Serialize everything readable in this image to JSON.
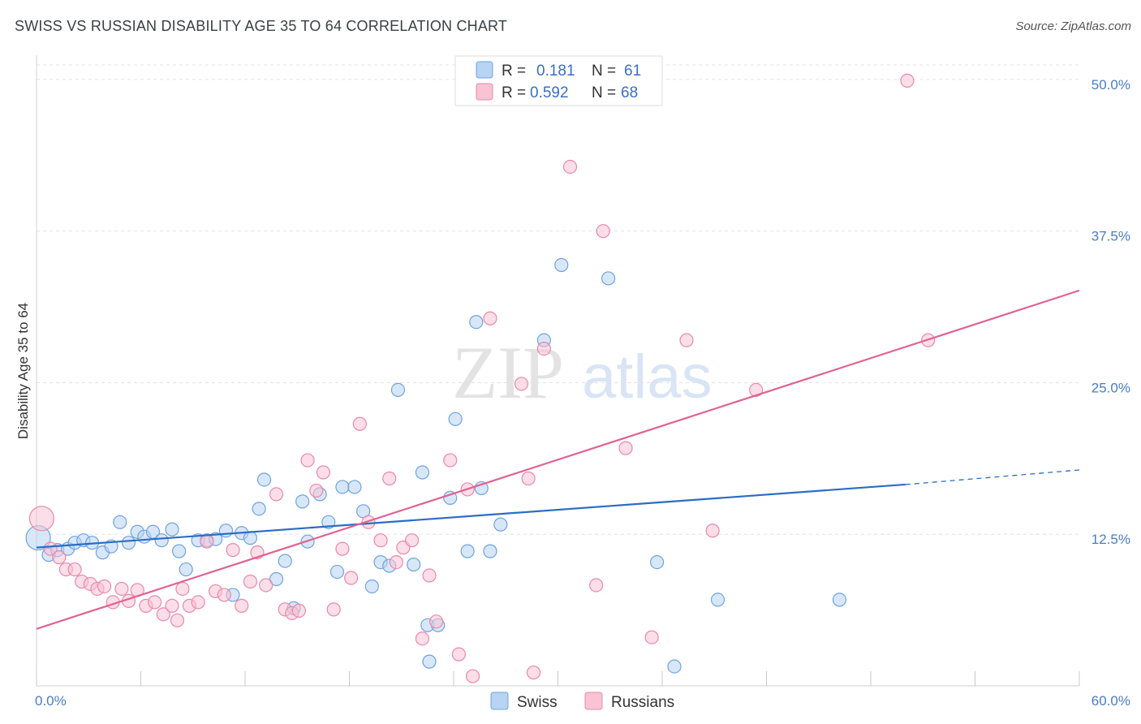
{
  "header": {
    "title": "SWISS VS RUSSIAN DISABILITY AGE 35 TO 64 CORRELATION CHART",
    "source": "Source: ZipAtlas.com"
  },
  "watermark": {
    "zip": "ZIP",
    "atlas": "atlas"
  },
  "legend": {
    "rows": [
      {
        "r_label": "R =",
        "r_value": "0.181",
        "n_label": "N =",
        "n_value": "61",
        "color": "#6fa3e0",
        "fill": "#b8d3f3"
      },
      {
        "r_label": "R =",
        "r_value": "0.592",
        "n_label": "N =",
        "n_value": "68",
        "color": "#e989aa",
        "fill": "#f8c3d3"
      }
    ]
  },
  "bottom_legend": {
    "items": [
      {
        "label": "Swiss",
        "fill": "#b8d3f3",
        "color": "#6fa3e0"
      },
      {
        "label": "Russians",
        "fill": "#f8c3d3",
        "color": "#e989aa"
      }
    ]
  },
  "chart_data": {
    "type": "scatter",
    "title": "SWISS VS RUSSIAN DISABILITY AGE 35 TO 64 CORRELATION CHART",
    "xlabel": "",
    "ylabel": "Disability Age 35 to 64",
    "xlim": [
      0,
      60
    ],
    "ylim": [
      0,
      52
    ],
    "x_tick_labels": [
      {
        "value": 0,
        "label": "0.0%"
      },
      {
        "value": 60,
        "label": "60.0%"
      }
    ],
    "y_tick_labels": [
      {
        "value": 12.5,
        "label": "12.5%"
      },
      {
        "value": 25,
        "label": "25.0%"
      },
      {
        "value": 37.5,
        "label": "37.5%"
      },
      {
        "value": 50,
        "label": "50.0%"
      }
    ],
    "x_ticks_minor": [
      0,
      6,
      12,
      18,
      24,
      30,
      36,
      42,
      48,
      54,
      60
    ],
    "grid": "horizontal dashed",
    "series": [
      {
        "name": "Swiss",
        "color": "#6fa3e0",
        "fill": "#b8d3f3",
        "trend": {
          "x0": 0,
          "y0": 11.4,
          "x1": 50,
          "y1": 16.6,
          "dash_to_x": 60,
          "dash_to_y": 17.8
        },
        "points": [
          [
            0.1,
            12.2
          ],
          [
            0.7,
            10.8
          ],
          [
            1.2,
            11.2
          ],
          [
            1.8,
            11.3
          ],
          [
            2.2,
            11.8
          ],
          [
            2.7,
            12.0
          ],
          [
            3.2,
            11.8
          ],
          [
            3.8,
            11.0
          ],
          [
            4.3,
            11.5
          ],
          [
            4.8,
            13.5
          ],
          [
            5.3,
            11.8
          ],
          [
            5.8,
            12.7
          ],
          [
            6.2,
            12.3
          ],
          [
            6.7,
            12.7
          ],
          [
            7.2,
            12.0
          ],
          [
            7.8,
            12.9
          ],
          [
            8.2,
            11.1
          ],
          [
            8.6,
            9.6
          ],
          [
            9.3,
            12.0
          ],
          [
            9.8,
            12.0
          ],
          [
            10.3,
            12.1
          ],
          [
            10.9,
            12.8
          ],
          [
            11.3,
            7.5
          ],
          [
            11.8,
            12.6
          ],
          [
            12.3,
            12.2
          ],
          [
            12.8,
            14.6
          ],
          [
            13.1,
            17.0
          ],
          [
            13.8,
            8.8
          ],
          [
            14.3,
            10.3
          ],
          [
            14.8,
            6.4
          ],
          [
            15.3,
            15.2
          ],
          [
            15.6,
            11.9
          ],
          [
            16.3,
            15.8
          ],
          [
            16.8,
            13.5
          ],
          [
            17.3,
            9.4
          ],
          [
            17.6,
            16.4
          ],
          [
            18.3,
            16.4
          ],
          [
            18.8,
            14.4
          ],
          [
            19.3,
            8.2
          ],
          [
            19.8,
            10.2
          ],
          [
            20.3,
            9.9
          ],
          [
            20.8,
            24.4
          ],
          [
            21.7,
            10.0
          ],
          [
            22.2,
            17.6
          ],
          [
            22.5,
            5.0
          ],
          [
            22.6,
            2.0
          ],
          [
            23.1,
            5.0
          ],
          [
            23.8,
            15.5
          ],
          [
            24.1,
            22.0
          ],
          [
            24.8,
            11.1
          ],
          [
            25.3,
            30.0
          ],
          [
            25.6,
            16.3
          ],
          [
            26.1,
            11.1
          ],
          [
            26.7,
            13.3
          ],
          [
            29.2,
            28.5
          ],
          [
            30.2,
            34.7
          ],
          [
            32.9,
            33.6
          ],
          [
            35.7,
            10.2
          ],
          [
            36.7,
            1.6
          ],
          [
            39.2,
            7.1
          ],
          [
            46.2,
            7.1
          ]
        ]
      },
      {
        "name": "Russians",
        "color": "#e989aa",
        "fill": "#f8c3d3",
        "trend": {
          "x0": 0,
          "y0": 4.7,
          "x1": 60,
          "y1": 32.6
        },
        "points": [
          [
            0.3,
            13.8
          ],
          [
            0.8,
            11.3
          ],
          [
            1.3,
            10.6
          ],
          [
            1.7,
            9.6
          ],
          [
            2.2,
            9.6
          ],
          [
            2.6,
            8.6
          ],
          [
            3.1,
            8.4
          ],
          [
            3.5,
            8.0
          ],
          [
            3.9,
            8.2
          ],
          [
            4.4,
            6.9
          ],
          [
            4.9,
            8.0
          ],
          [
            5.3,
            7.0
          ],
          [
            5.8,
            7.9
          ],
          [
            6.3,
            6.6
          ],
          [
            6.8,
            6.9
          ],
          [
            7.3,
            5.9
          ],
          [
            7.8,
            6.6
          ],
          [
            8.1,
            5.4
          ],
          [
            8.4,
            8.0
          ],
          [
            8.8,
            6.6
          ],
          [
            9.3,
            6.9
          ],
          [
            9.8,
            11.9
          ],
          [
            10.3,
            7.8
          ],
          [
            10.8,
            7.5
          ],
          [
            11.3,
            11.2
          ],
          [
            11.8,
            6.6
          ],
          [
            12.3,
            8.6
          ],
          [
            12.7,
            11.0
          ],
          [
            13.2,
            8.3
          ],
          [
            13.8,
            15.8
          ],
          [
            14.3,
            6.3
          ],
          [
            14.7,
            6.0
          ],
          [
            15.1,
            6.2
          ],
          [
            15.6,
            18.6
          ],
          [
            16.1,
            16.1
          ],
          [
            16.5,
            17.6
          ],
          [
            17.1,
            6.3
          ],
          [
            17.6,
            11.3
          ],
          [
            18.1,
            8.9
          ],
          [
            18.6,
            21.6
          ],
          [
            19.1,
            13.5
          ],
          [
            19.8,
            12.0
          ],
          [
            20.3,
            17.1
          ],
          [
            20.7,
            10.2
          ],
          [
            21.1,
            11.4
          ],
          [
            21.6,
            12.0
          ],
          [
            22.2,
            3.9
          ],
          [
            22.6,
            9.1
          ],
          [
            23.0,
            5.3
          ],
          [
            23.8,
            18.6
          ],
          [
            24.3,
            2.6
          ],
          [
            24.8,
            16.2
          ],
          [
            25.1,
            0.8
          ],
          [
            26.1,
            30.3
          ],
          [
            27.9,
            24.9
          ],
          [
            28.3,
            17.1
          ],
          [
            28.6,
            1.1
          ],
          [
            29.2,
            27.8
          ],
          [
            30.7,
            42.8
          ],
          [
            32.2,
            8.3
          ],
          [
            32.6,
            37.5
          ],
          [
            33.9,
            19.6
          ],
          [
            35.4,
            4.0
          ],
          [
            37.4,
            28.5
          ],
          [
            38.9,
            12.8
          ],
          [
            41.4,
            24.4
          ],
          [
            50.1,
            49.9
          ],
          [
            51.3,
            28.5
          ]
        ]
      }
    ]
  }
}
